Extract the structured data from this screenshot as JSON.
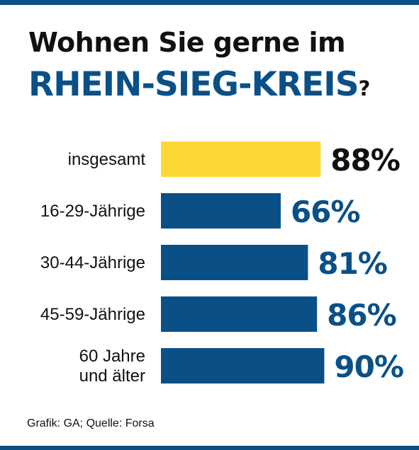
{
  "title_line1": "Wohnen Sie gerne im",
  "title_line2": "RHEIN-SIEG-KREIS",
  "title_question_mark": "?",
  "source": "Grafik: GA; Quelle: Forsa",
  "colors": {
    "accent": "#0a5086",
    "highlight": "#fdd835",
    "text": "#111111"
  },
  "chart_data": {
    "type": "bar",
    "orientation": "horizontal",
    "categories": [
      [
        "insgesamt"
      ],
      [
        "16-29-Jährige"
      ],
      [
        "30-44-Jährige"
      ],
      [
        "45-59-Jährige"
      ],
      [
        "60 Jahre",
        "und älter"
      ]
    ],
    "values": [
      88,
      66,
      81,
      86,
      90
    ],
    "value_labels": [
      "88%",
      "66%",
      "81%",
      "86%",
      "90%"
    ],
    "bar_colors": [
      "#fdd835",
      "#0a5086",
      "#0a5086",
      "#0a5086",
      "#0a5086"
    ],
    "label_colors": [
      "#111111",
      "#0a5086",
      "#0a5086",
      "#0a5086",
      "#0a5086"
    ],
    "unit": "%",
    "grid": false,
    "legend": false
  }
}
